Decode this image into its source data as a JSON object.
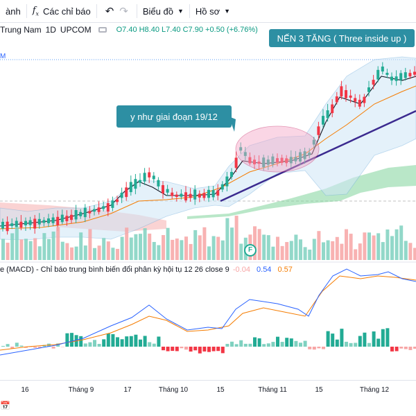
{
  "toolbar": {
    "left_cut": "ành",
    "indicators_label": "Các chỉ báo",
    "chart_type_label": "Biểu đồ",
    "profile_label": "Hồ sơ"
  },
  "legend": {
    "symbol": "Trung Nam",
    "interval": "1D",
    "exchange": "UPCOM",
    "ohlc": "O7.40 H8.40 L7.40 C7.90 +0.50 (+6.76%)"
  },
  "price_marker": "M",
  "callouts": {
    "pattern": "NẾN 3 TĂNG ( Three inside up )",
    "note": "y như giai đoạn 19/12"
  },
  "macd": {
    "title": "e (MACD) - Chỉ báo trung bình biến đổi phân kỳ hội tụ 12 26 close 9",
    "hist": "-0.04",
    "macd": "0.54",
    "signal": "0.57"
  },
  "event_flag": "F",
  "time_axis": [
    "16",
    "Tháng 9",
    "17",
    "Tháng 10",
    "15",
    "Tháng 11",
    "15",
    "Tháng 12"
  ],
  "colors": {
    "up": "#22ab94",
    "down": "#f23645",
    "accent": "#2d8fa3",
    "trend": "#3b2a8f"
  }
}
